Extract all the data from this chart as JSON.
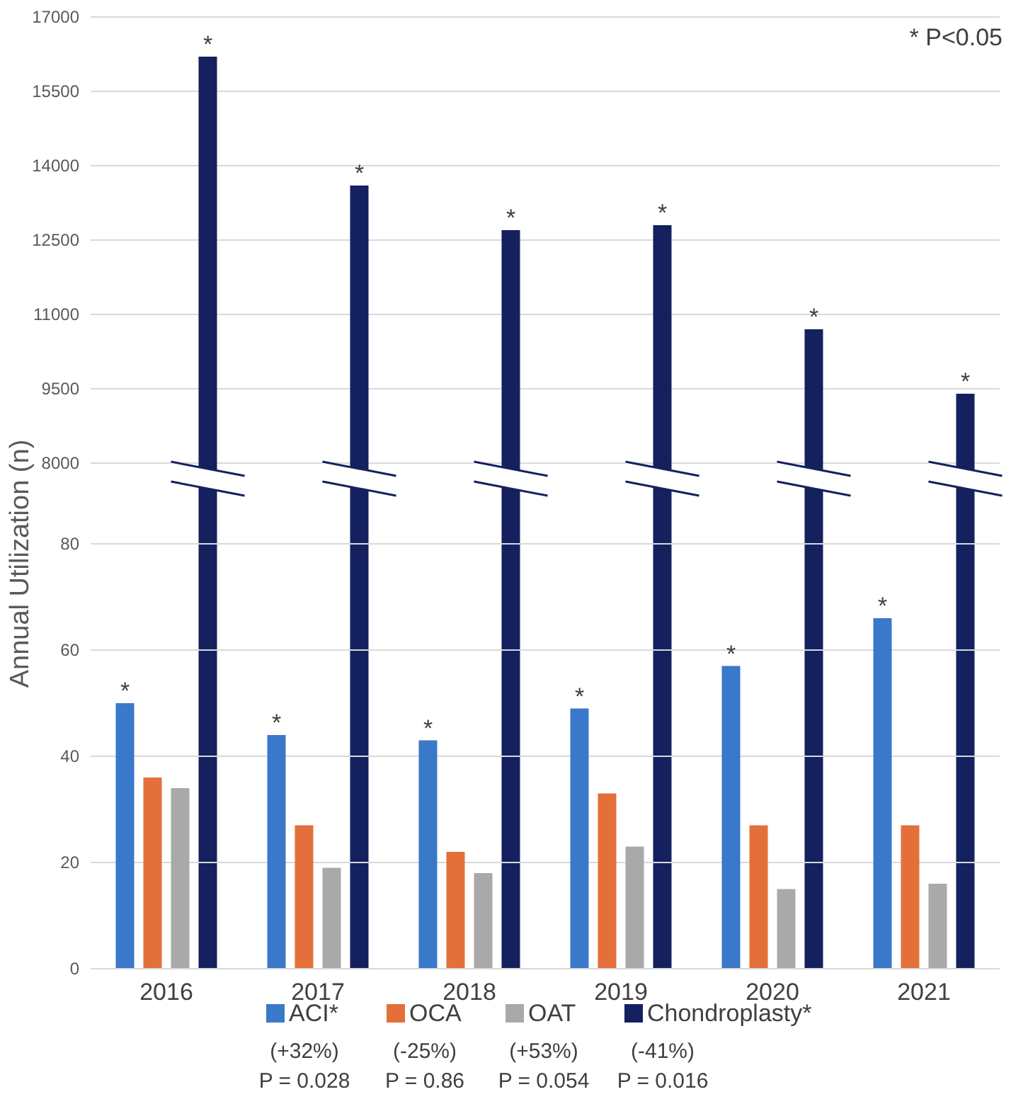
{
  "chart_data": [
    {
      "type": "bar",
      "categories": [
        null,
        null,
        null,
        null,
        null,
        null
      ],
      "tick_labels": "y",
      "ylim": [
        8000,
        17000
      ],
      "yticks": [
        8000,
        9500,
        11000,
        12500,
        14000,
        15500,
        17000
      ],
      "grid": "y",
      "legend": "bottom",
      "series": [
        {
          "name": "Chondroplasty*",
          "color": "#14215e",
          "values": [
            16200,
            13600,
            12700,
            12800,
            10700,
            9400
          ]
        }
      ],
      "annotations": [
        "* P<0.05",
        "*",
        "*",
        "*",
        "*",
        "*",
        "*"
      ]
    },
    {
      "type": "bar",
      "categories": [
        "2016",
        "2017",
        "2018",
        "2019",
        "2020",
        "2021"
      ],
      "ylabel": "Annual Utilization (n)",
      "ylim": [
        0,
        80
      ],
      "yticks": [
        0,
        20,
        40,
        60,
        80
      ],
      "grid": "y",
      "legend": "bottom",
      "series": [
        {
          "name": "ACI*",
          "color": "#3a78c9",
          "values": [
            50,
            44,
            43,
            49,
            57,
            66
          ]
        },
        {
          "name": "OCA",
          "color": "#e3703a",
          "values": [
            36,
            27,
            22,
            33,
            27,
            27
          ]
        },
        {
          "name": "OAT",
          "color": "#a9a9a9",
          "values": [
            34,
            19,
            18,
            23,
            15,
            16
          ]
        }
      ],
      "annotations": [
        "(+32%)",
        "P = 0.028",
        "(-25%)",
        "P = 0.86",
        "(+53%)",
        "P = 0.054",
        "(-41%)",
        "P = 0.016",
        "*",
        "*",
        "*",
        "*",
        "*",
        "*"
      ]
    }
  ]
}
